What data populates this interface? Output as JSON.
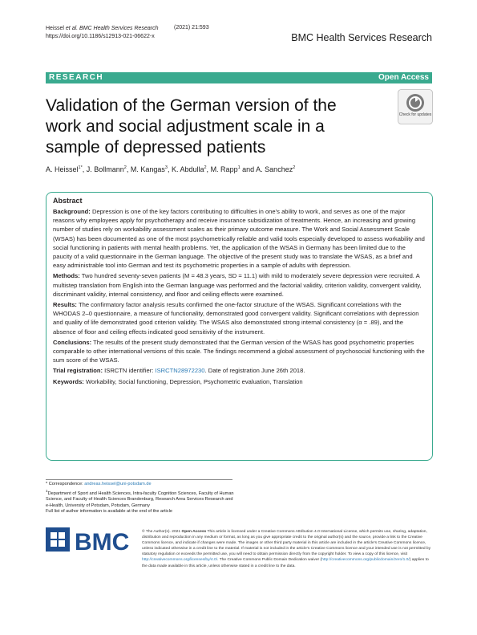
{
  "header": {
    "authors_short": "Heissel ",
    "et_al": "et al.",
    "journal_abbrev": " BMC Health Services Research",
    "year_vol": "(2021) 21:593",
    "doi": "https://doi.org/10.1186/s12913-021-06622-x",
    "journal_name": "BMC Health Services Research"
  },
  "banner": {
    "section": "RESEARCH",
    "access": "Open Access"
  },
  "title": "Validation of the German version of the work and social adjustment scale in a sample of depressed patients",
  "check_badge": {
    "text": "Check for updates"
  },
  "authors": [
    {
      "name": "A. Heissel",
      "sup": "1*"
    },
    {
      "name": "J. Bollmann",
      "sup": "2"
    },
    {
      "name": "M. Kangas",
      "sup": "3"
    },
    {
      "name": "K. Abdulla",
      "sup": "2"
    },
    {
      "name": "M. Rapp",
      "sup": "1"
    },
    {
      "name": "A. Sanchez",
      "sup": "2"
    }
  ],
  "abstract": {
    "heading": "Abstract",
    "background_label": "Background:",
    "background": "Depression is one of the key factors contributing to difficulties in one’s ability to work, and serves as one of the major reasons why employees apply for psychotherapy and receive insurance subsidization of treatments. Hence, an increasing and growing number of studies rely on workability assessment scales as their primary outcome measure. The Work and Social Assessment Scale (WSAS) has been documented as one of the most psychometrically reliable and valid tools especially developed to assess workability and social functioning in patients with mental health problems. Yet, the application of the WSAS in Germany has been limited due to the paucity of a valid questionnaire in the German language. The objective of the present study was to translate the WSAS, as a brief and easy administrable tool into German and test its psychometric properties in a sample of adults with depression.",
    "methods_label": "Methods:",
    "methods": "Two hundred seventy-seven patients (M = 48.3 years, SD = 11.1) with mild to moderately severe depression were recruited. A multistep translation from English into the German language was performed and the factorial validity, criterion validity, convergent validity, discriminant validity, internal consistency, and floor and ceiling effects were examined.",
    "results_label": "Results:",
    "results": "The confirmatory factor analysis results confirmed the one-factor structure of the WSAS. Significant correlations with the WHODAS 2–0 questionnaire, a measure of functionality, demonstrated good convergent validity. Significant correlations with depression and quality of life demonstrated good criterion validity. The WSAS also demonstrated strong internal consistency (α = .89), and the absence of floor and ceiling effects indicated good sensitivity of the instrument.",
    "conclusions_label": "Conclusions:",
    "conclusions": "The results of the present study demonstrated that the German version of the WSAS has good psychometric properties comparable to other international versions of this scale. The findings recommend a global assessment of psychosocial functioning with the sum score of the WSAS.",
    "trial_label": "Trial registration:",
    "trial_prefix": " ISRCTN identifier: ",
    "trial_link": "ISRCTN28972230",
    "trial_suffix": ". Date of registration June 26th 2018.",
    "keywords_label": "Keywords:",
    "keywords": " Workability, Social functioning, Depression, Psychometric evaluation, Translation"
  },
  "footnotes": {
    "correspondence_prefix": "* Correspondence: ",
    "correspondence_email": "andreas.heissel@uni-potsdam.de",
    "affil_sup": "1",
    "affiliation": "Department of Sport and Health Sciences, Intra-faculty Cognition Sciences, Faculty of Human Science, and Faculty of Health Sciences Brandenburg, Research Area Services Research and e-Health, University of Potsdam, Potsdam, Germany",
    "full_list": "Full list of author information is available at the end of the article"
  },
  "logo": {
    "text": "BMC"
  },
  "license": {
    "prefix": "© The Author(s). 2021 ",
    "open_access": "Open Access",
    "body": " This article is licensed under a Creative Commons Attribution 4.0 International License, which permits use, sharing, adaptation, distribution and reproduction in any medium or format, as long as you give appropriate credit to the original author(s) and the source, provide a link to the Creative Commons licence, and indicate if changes were made. The images or other third party material in this article are included in the article’s Creative Commons licence, unless indicated otherwise in a credit line to the material. If material is not included in the article’s Creative Commons licence and your intended use is not permitted by statutory regulation or exceeds the permitted use, you will need to obtain permission directly from the copyright holder. To view a copy of this licence, visit ",
    "link1": "http://creativecommons.org/licenses/by/4.0/",
    "mid": ". The Creative Commons Public Domain Dedication waiver (",
    "link2": "http://creativecommons.org/publicdomain/zero/1.0/",
    "end": ") applies to the data made available in this article, unless otherwise stated in a credit line to the data."
  },
  "colors": {
    "accent": "#3aaa8f",
    "link": "#2a7ab5",
    "logo_blue": "#1f4e8f"
  }
}
